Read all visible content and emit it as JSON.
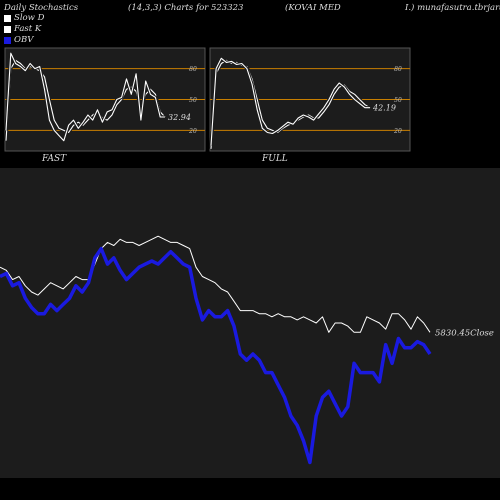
{
  "header": {
    "left": "Daily Stochastics",
    "params": "(14,3,3) Charts for 523323",
    "company": "(KOVAI MED",
    "site": "I.) munafasutra.tbrjara"
  },
  "colors": {
    "background": "#000000",
    "panel": "#1c1c1c",
    "level_line": "#c97f00",
    "obv": "#1a1adf",
    "close": "#ffffff"
  },
  "chart_data": [
    {
      "type": "line",
      "panel_label": "FAST",
      "yticks": [
        80,
        50,
        20
      ],
      "ylim": [
        0,
        100
      ],
      "levels": [
        80,
        50,
        20
      ],
      "value_label": "32.94",
      "series": [
        {
          "name": "Slow D",
          "values": [
            10,
            80,
            88,
            85,
            80,
            82,
            80,
            78,
            72,
            50,
            30,
            22,
            20,
            18,
            25,
            28,
            25,
            30,
            35,
            38,
            32,
            30,
            35,
            45,
            50,
            60,
            62,
            58,
            42,
            55,
            60,
            55,
            38,
            33
          ]
        },
        {
          "name": "Fast K",
          "values": [
            20,
            95,
            85,
            82,
            78,
            85,
            80,
            82,
            60,
            30,
            20,
            15,
            10,
            25,
            30,
            22,
            28,
            35,
            30,
            40,
            28,
            38,
            40,
            50,
            52,
            70,
            55,
            75,
            30,
            68,
            55,
            52,
            33,
            33
          ]
        }
      ]
    },
    {
      "type": "line",
      "panel_label": "FULL",
      "yticks": [
        80,
        50,
        20
      ],
      "ylim": [
        0,
        100
      ],
      "levels": [
        80,
        50,
        20
      ],
      "value_label": "42.19",
      "series": [
        {
          "name": "Slow D",
          "values": [
            2,
            75,
            85,
            88,
            85,
            86,
            83,
            82,
            70,
            50,
            30,
            22,
            20,
            18,
            22,
            25,
            27,
            30,
            33,
            35,
            32,
            32,
            38,
            45,
            55,
            62,
            64,
            58,
            55,
            50,
            45,
            42
          ]
        },
        {
          "name": "Fast K",
          "values": [
            5,
            80,
            90,
            86,
            87,
            84,
            85,
            80,
            65,
            40,
            22,
            18,
            17,
            20,
            24,
            28,
            26,
            32,
            35,
            33,
            30,
            36,
            42,
            50,
            60,
            66,
            62,
            55,
            50,
            46,
            42,
            42
          ]
        }
      ]
    },
    {
      "type": "line",
      "close_label": "5830.45Close",
      "series": [
        {
          "name": "Close",
          "values": [
            68,
            67,
            64,
            65,
            62,
            60,
            59,
            61,
            63,
            62,
            61,
            63,
            65,
            64,
            64,
            69,
            74,
            76,
            75,
            77,
            76,
            76,
            75,
            76,
            77,
            78,
            77,
            76,
            76,
            75,
            74,
            68,
            65,
            64,
            63,
            61,
            60,
            57,
            54,
            54,
            54,
            53,
            53,
            52,
            53,
            52,
            52,
            51,
            52,
            51,
            50,
            52,
            47,
            50,
            50,
            49,
            47,
            47,
            52,
            51,
            50,
            48,
            53,
            53,
            51,
            48,
            52,
            50,
            47
          ]
        },
        {
          "name": "OBV",
          "values": [
            65,
            66,
            62,
            63,
            58,
            55,
            53,
            53,
            56,
            54,
            56,
            58,
            62,
            60,
            63,
            71,
            74,
            69,
            71,
            67,
            64,
            66,
            68,
            69,
            70,
            69,
            71,
            73,
            71,
            69,
            68,
            58,
            51,
            54,
            52,
            52,
            54,
            49,
            40,
            38,
            40,
            38,
            34,
            34,
            30,
            26,
            20,
            17,
            12,
            5,
            20,
            26,
            28,
            24,
            20,
            23,
            37,
            34,
            34,
            34,
            31,
            43,
            37,
            45,
            42,
            42,
            44,
            43,
            40
          ]
        }
      ]
    }
  ]
}
